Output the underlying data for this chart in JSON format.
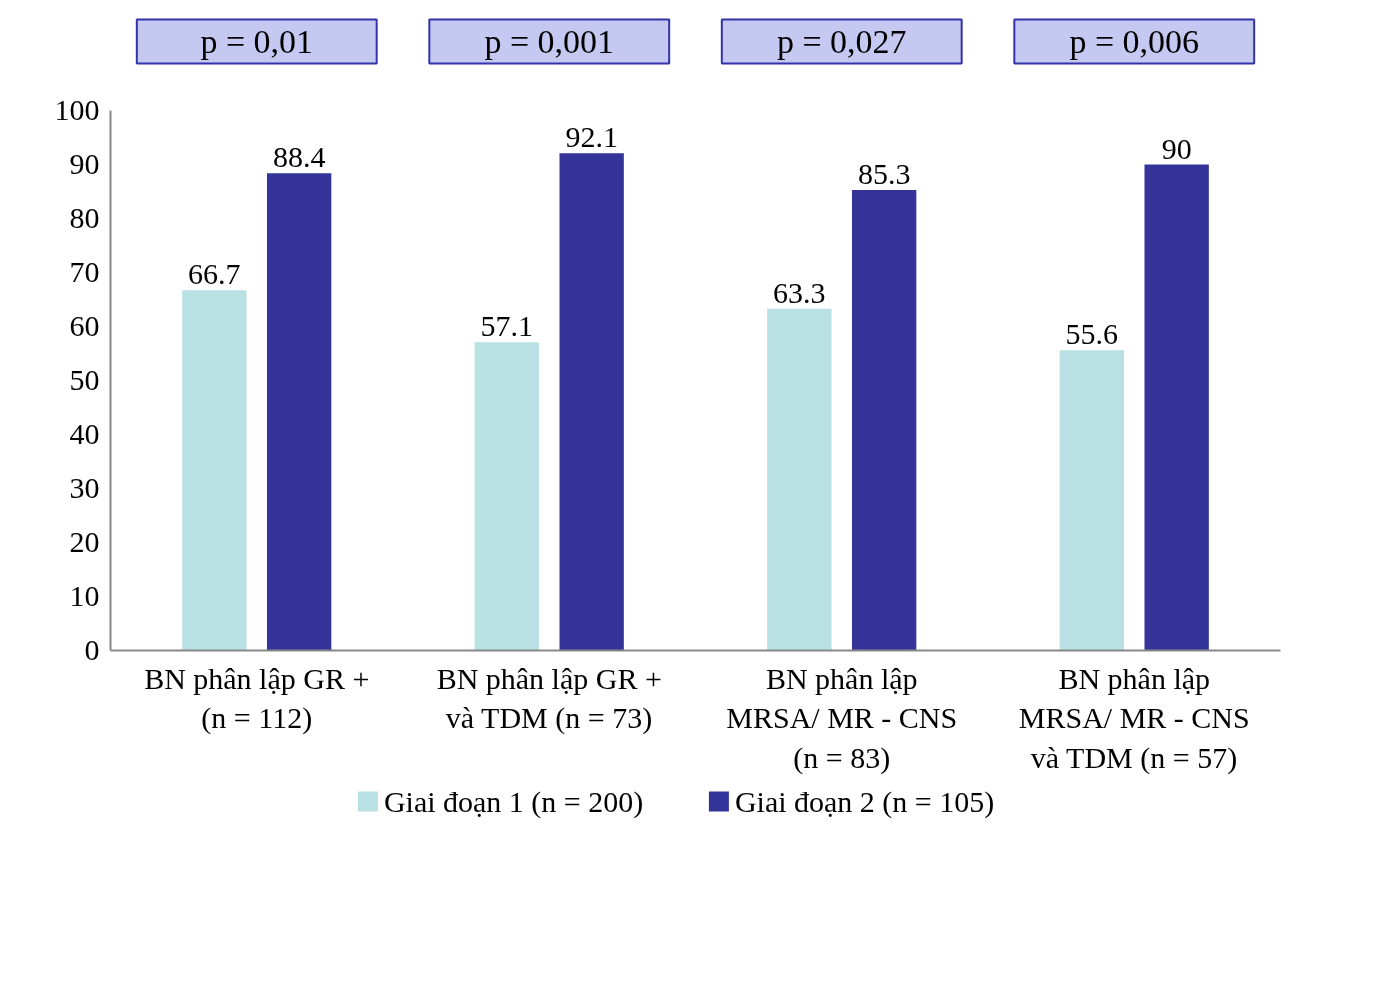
{
  "chart_data": {
    "type": "bar",
    "categories": [
      "BN phân lập GR +\n(n = 112)",
      "BN phân lập GR +\nvà TDM (n = 73)",
      "BN phân lập\nMRSA/ MR - CNS\n(n = 83)",
      "BN phân lập\nMRSA/ MR - CNS\nvà TDM (n = 57)"
    ],
    "series": [
      {
        "name": "Giai đoạn 1 (n = 200)",
        "color": "#b9e0e3",
        "values": [
          66.7,
          57.1,
          63.3,
          55.6
        ]
      },
      {
        "name": "Giai đoạn 2 (n = 105)",
        "color": "#333399",
        "values": [
          88.4,
          92.1,
          85.3,
          90
        ]
      }
    ],
    "ylim": [
      0,
      100
    ],
    "yticks": [
      0,
      10,
      20,
      30,
      40,
      50,
      60,
      70,
      80,
      90,
      100
    ],
    "data_labels": true,
    "grid": false,
    "legend": "bottom",
    "annotations": [
      "p = 0,01",
      "p = 0,001",
      "p = 0,027",
      "p = 0,006"
    ]
  }
}
